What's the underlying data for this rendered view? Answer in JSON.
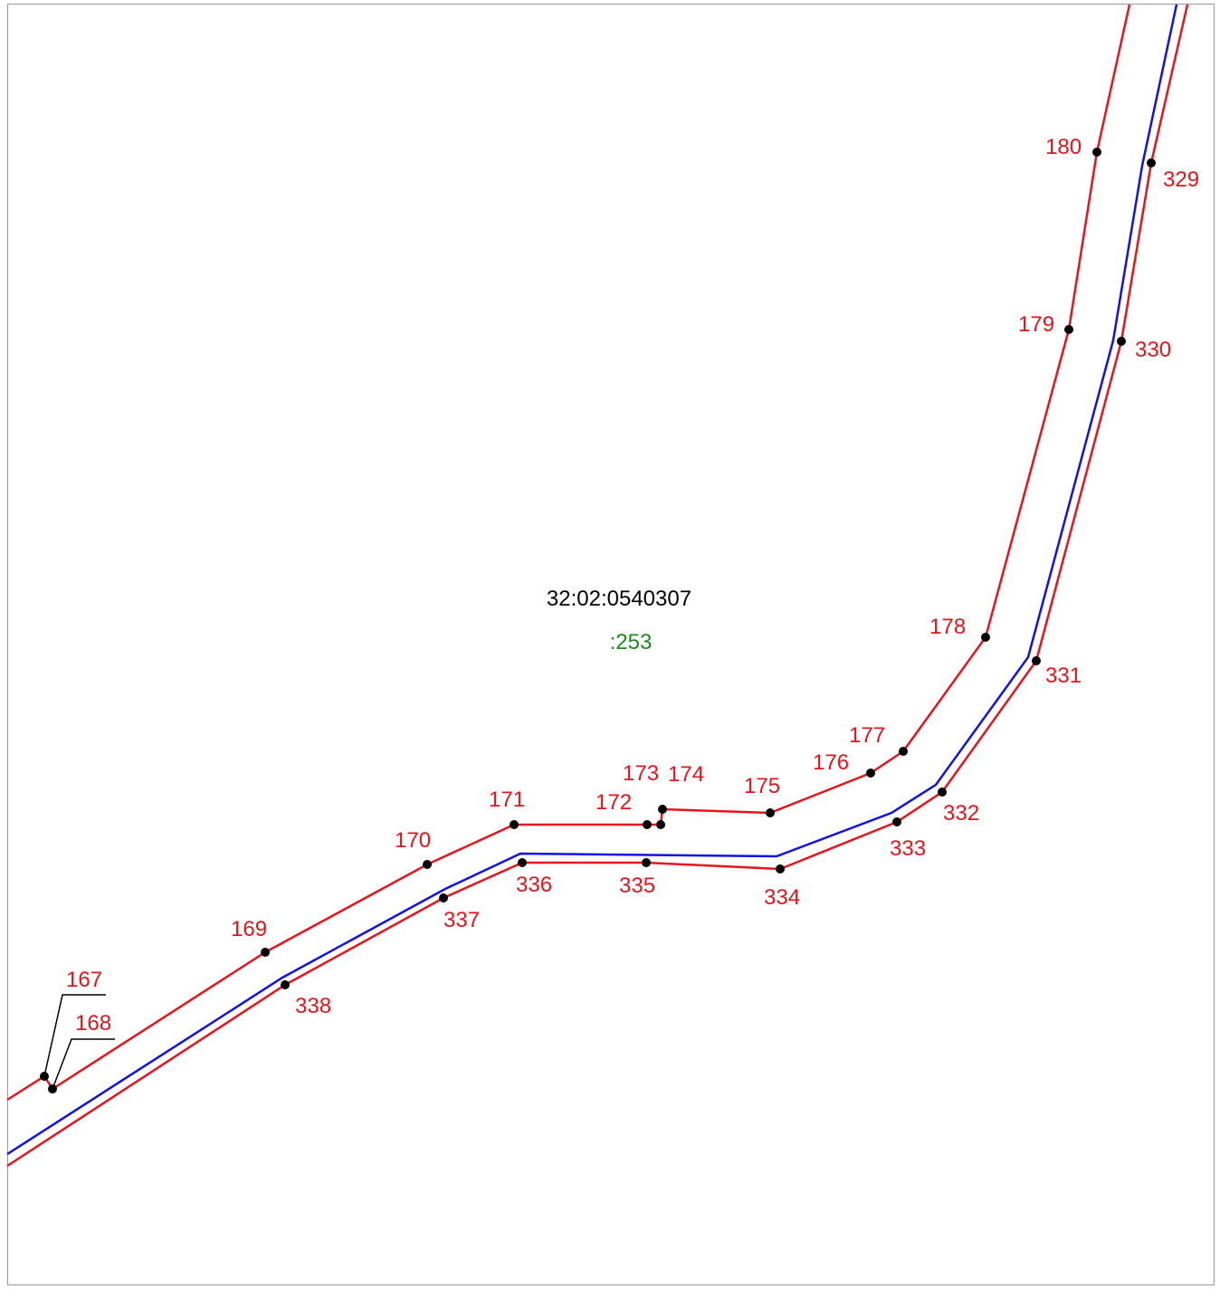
{
  "parcel": {
    "block_number": "32:02:0540307",
    "parcel_number": ":253"
  },
  "colors": {
    "boundary": "#e8141c",
    "centerline": "#1212e6",
    "point": "#000000",
    "label": "#e8141c",
    "parcel_number": "#1e8a1e",
    "block_number": "#000000",
    "leader": "#000000"
  },
  "points": {
    "p167": "167",
    "p168": "168",
    "p169": "169",
    "p170": "170",
    "p171": "171",
    "p172": "172",
    "p173": "173",
    "p174": "174",
    "p175": "175",
    "p176": "176",
    "p177": "177",
    "p178": "178",
    "p179": "179",
    "p180": "180",
    "p329": "329",
    "p330": "330",
    "p331": "331",
    "p332": "332",
    "p333": "333",
    "p334": "334",
    "p335": "335",
    "p336": "336",
    "p337": "337",
    "p338": "338"
  }
}
